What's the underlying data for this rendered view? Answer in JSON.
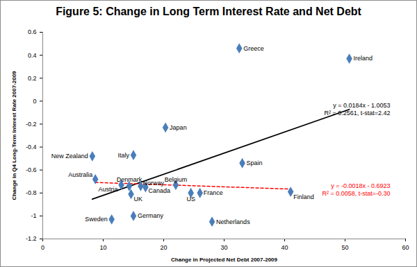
{
  "chart_data": {
    "type": "scatter",
    "title": "Figure 5: Change in Long Term Interest Rate and Net Debt",
    "xlabel": "Change in Projected Net Debt 2007-2009",
    "ylabel": "Change in Q4 Long-Term Interest Rate 2007-2009",
    "xlim": [
      0,
      60
    ],
    "ylim": [
      -1.2,
      0.6
    ],
    "xticks": [
      0,
      10,
      20,
      30,
      40,
      50,
      60
    ],
    "yticks": [
      -1.2,
      -1,
      -0.8,
      -0.6,
      -0.4,
      -0.2,
      0,
      0.2,
      0.4,
      0.6
    ],
    "grid": false,
    "color": "#4a7ebb",
    "marker": "diamond",
    "labels": [
      "Greece",
      "Ireland",
      "Japan",
      "New Zealand",
      "Italy",
      "Spain",
      "Australia",
      "Denmark",
      "Austria",
      "Norway",
      "Canada",
      "UK",
      "Belgium",
      "US",
      "France",
      "Finland",
      "Sweden",
      "Germany",
      "Netherlands"
    ],
    "x": [
      32.5,
      50.7,
      20.3,
      8.2,
      15.0,
      33.0,
      8.7,
      14.3,
      13.0,
      16.2,
      17.0,
      14.6,
      22.0,
      24.5,
      26.0,
      41.0,
      11.4,
      15.0,
      28.0
    ],
    "values": [
      0.46,
      0.37,
      -0.23,
      -0.48,
      -0.47,
      -0.54,
      -0.68,
      -0.74,
      -0.73,
      -0.74,
      -0.75,
      -0.81,
      -0.73,
      -0.8,
      -0.8,
      -0.79,
      -1.03,
      -1.0,
      -1.05
    ],
    "series": [
      {
        "type": "line",
        "color": "#000000",
        "line_style": "solid",
        "x": [
          8.2,
          50.7
        ],
        "values": [
          -0.854,
          -0.072
        ]
      },
      {
        "type": "line",
        "color": "#ff0000",
        "line_style": "dashed",
        "x": [
          8.7,
          41.0
        ],
        "values": [
          -0.708,
          -0.766
        ]
      }
    ],
    "annotations": [
      {
        "text": [
          "y = 0.0184x - 1.0053",
          "R² = 0.2561, t-stat=2.42"
        ],
        "color": "#000000"
      },
      {
        "text": [
          "y = -0.0018x - 0.6923",
          "R² = 0.0058, t-stat=-0.30"
        ],
        "color": "#ff0000"
      }
    ]
  }
}
